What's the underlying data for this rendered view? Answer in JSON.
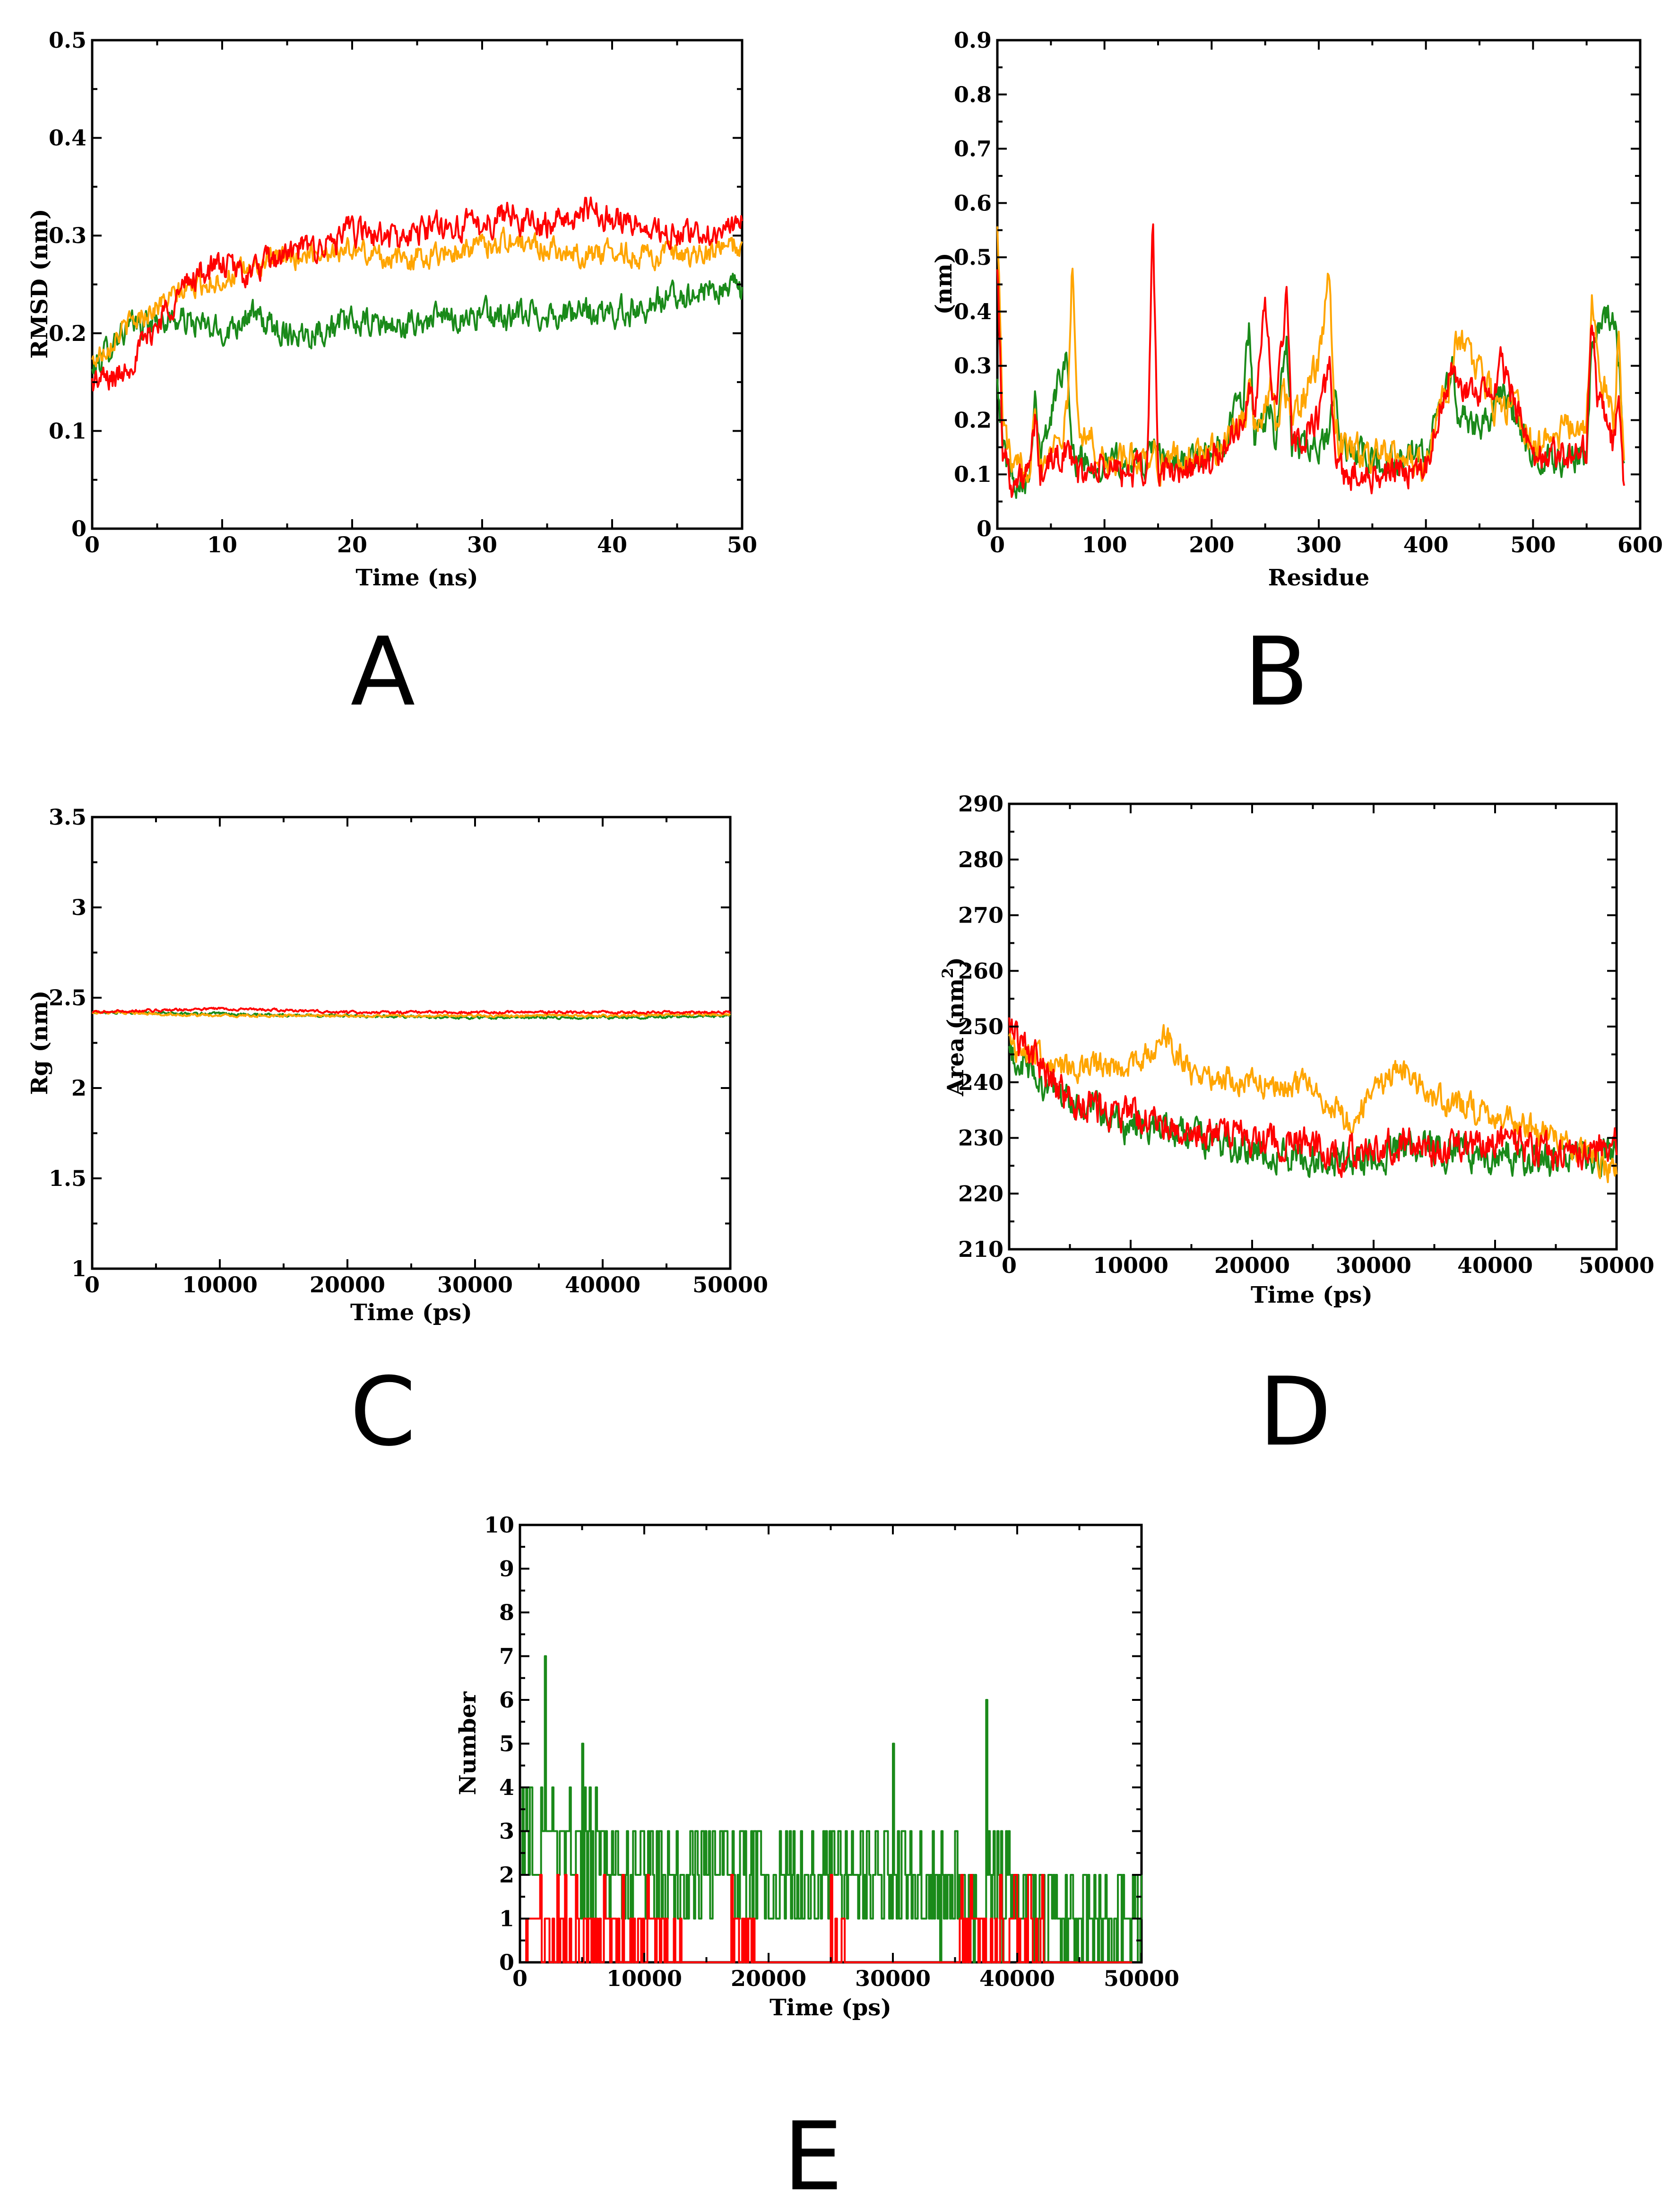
{
  "colors": {
    "green": "#1a8a1a",
    "orange": "#ffa500",
    "red": "#ff0000"
  },
  "chart_data": [
    {
      "id": "A",
      "type": "line",
      "panel_label": "A",
      "xlabel": "Time (ns)",
      "ylabel": "RMSD (nm)",
      "xlim": [
        0,
        50
      ],
      "ylim": [
        0,
        0.5
      ],
      "xticks": [
        0,
        10,
        20,
        30,
        40,
        50
      ],
      "xtick_labels": [
        "0",
        "10",
        "20",
        "30",
        "40",
        "50"
      ],
      "yticks": [
        0,
        0.1,
        0.2,
        0.3,
        0.4,
        0.5
      ],
      "ytick_labels": [
        "0",
        "0.1",
        "0.2",
        "0.3",
        "0.4",
        "0.5"
      ],
      "x": [
        0,
        2,
        4,
        6,
        8,
        10,
        12,
        14,
        16,
        18,
        20,
        22,
        24,
        26,
        28,
        30,
        32,
        34,
        36,
        38,
        40,
        42,
        44,
        46,
        48,
        50
      ],
      "series": [
        {
          "name": "green",
          "color": "#1a8a1a",
          "noise": 0.012,
          "values": [
            0.16,
            0.2,
            0.21,
            0.215,
            0.21,
            0.2,
            0.22,
            0.205,
            0.2,
            0.205,
            0.21,
            0.21,
            0.205,
            0.215,
            0.215,
            0.22,
            0.215,
            0.22,
            0.22,
            0.22,
            0.22,
            0.225,
            0.235,
            0.24,
            0.245,
            0.245
          ]
        },
        {
          "name": "orange",
          "color": "#ffa500",
          "noise": 0.01,
          "values": [
            0.17,
            0.2,
            0.22,
            0.235,
            0.25,
            0.255,
            0.265,
            0.275,
            0.28,
            0.285,
            0.285,
            0.28,
            0.275,
            0.28,
            0.285,
            0.29,
            0.295,
            0.29,
            0.285,
            0.28,
            0.285,
            0.28,
            0.28,
            0.275,
            0.285,
            0.29
          ]
        },
        {
          "name": "red",
          "color": "#ff0000",
          "noise": 0.012,
          "values": [
            0.15,
            0.155,
            0.19,
            0.23,
            0.26,
            0.27,
            0.26,
            0.275,
            0.285,
            0.29,
            0.305,
            0.3,
            0.295,
            0.31,
            0.31,
            0.31,
            0.325,
            0.31,
            0.315,
            0.325,
            0.32,
            0.31,
            0.3,
            0.3,
            0.305,
            0.31
          ]
        }
      ]
    },
    {
      "id": "B",
      "type": "line",
      "panel_label": "B",
      "xlabel": "Residue",
      "ylabel": "(nm)",
      "xlim": [
        0,
        600
      ],
      "ylim": [
        0,
        0.9
      ],
      "xticks": [
        0,
        100,
        200,
        300,
        400,
        500,
        600
      ],
      "xtick_labels": [
        "0",
        "100",
        "200",
        "300",
        "400",
        "500",
        "600"
      ],
      "yticks": [
        0,
        0.1,
        0.2,
        0.3,
        0.4,
        0.5,
        0.6,
        0.7,
        0.8,
        0.9
      ],
      "ytick_labels": [
        "0",
        "0.1",
        "0.2",
        "0.3",
        "0.4",
        "0.5",
        "0.6",
        "0.7",
        "0.8",
        "0.9"
      ],
      "x": [
        0,
        5,
        15,
        30,
        35,
        40,
        65,
        70,
        75,
        100,
        140,
        145,
        150,
        200,
        230,
        235,
        240,
        250,
        255,
        260,
        270,
        275,
        300,
        310,
        315,
        320,
        360,
        400,
        425,
        430,
        460,
        470,
        480,
        500,
        550,
        555,
        560,
        575,
        580,
        585
      ],
      "series": [
        {
          "name": "green",
          "color": "#1a8a1a",
          "noise": 0.025,
          "values": [
            0.3,
            0.15,
            0.09,
            0.1,
            0.27,
            0.12,
            0.34,
            0.12,
            0.13,
            0.12,
            0.12,
            0.17,
            0.12,
            0.13,
            0.25,
            0.38,
            0.15,
            0.2,
            0.24,
            0.16,
            0.35,
            0.15,
            0.14,
            0.18,
            0.25,
            0.15,
            0.12,
            0.13,
            0.3,
            0.2,
            0.2,
            0.25,
            0.22,
            0.12,
            0.14,
            0.35,
            0.38,
            0.4,
            0.3,
            0.1
          ]
        },
        {
          "name": "orange",
          "color": "#ffa500",
          "noise": 0.025,
          "values": [
            0.58,
            0.2,
            0.1,
            0.12,
            0.25,
            0.12,
            0.2,
            0.49,
            0.2,
            0.12,
            0.13,
            0.15,
            0.12,
            0.14,
            0.2,
            0.25,
            0.18,
            0.22,
            0.3,
            0.2,
            0.25,
            0.2,
            0.3,
            0.47,
            0.2,
            0.15,
            0.13,
            0.12,
            0.3,
            0.36,
            0.25,
            0.2,
            0.25,
            0.15,
            0.2,
            0.42,
            0.3,
            0.2,
            0.35,
            0.1
          ]
        },
        {
          "name": "red",
          "color": "#ff0000",
          "noise": 0.025,
          "values": [
            0.5,
            0.15,
            0.08,
            0.1,
            0.2,
            0.1,
            0.15,
            0.12,
            0.1,
            0.11,
            0.1,
            0.59,
            0.1,
            0.12,
            0.2,
            0.25,
            0.2,
            0.44,
            0.3,
            0.2,
            0.43,
            0.15,
            0.2,
            0.3,
            0.15,
            0.1,
            0.1,
            0.12,
            0.3,
            0.25,
            0.25,
            0.3,
            0.25,
            0.12,
            0.15,
            0.38,
            0.25,
            0.15,
            0.25,
            0.08
          ]
        }
      ]
    },
    {
      "id": "C",
      "type": "line",
      "panel_label": "C",
      "xlabel": "Time (ps)",
      "ylabel": "Rg (nm)",
      "xlim": [
        0,
        50000
      ],
      "ylim": [
        1,
        3.5
      ],
      "xticks": [
        0,
        10000,
        20000,
        30000,
        40000,
        50000
      ],
      "xtick_labels": [
        "0",
        "10000",
        "20000",
        "30000",
        "40000",
        "50000"
      ],
      "yticks": [
        1,
        1.5,
        2,
        2.5,
        3,
        3.5
      ],
      "ytick_labels": [
        "1",
        "1.5",
        "2",
        "2.5",
        "3",
        "3.5"
      ],
      "x": [
        0,
        10000,
        20000,
        30000,
        40000,
        50000
      ],
      "series": [
        {
          "name": "green",
          "color": "#1a8a1a",
          "noise": 0.006,
          "values": [
            2.42,
            2.41,
            2.4,
            2.39,
            2.39,
            2.4
          ]
        },
        {
          "name": "orange",
          "color": "#ffa500",
          "noise": 0.006,
          "values": [
            2.42,
            2.4,
            2.4,
            2.4,
            2.4,
            2.41
          ]
        },
        {
          "name": "red",
          "color": "#ff0000",
          "noise": 0.006,
          "values": [
            2.42,
            2.44,
            2.42,
            2.42,
            2.42,
            2.42
          ]
        }
      ]
    },
    {
      "id": "D",
      "type": "line",
      "panel_label": "D",
      "xlabel": "Time (ps)",
      "ylabel": "Area (nm",
      "ylabel_sup": "2",
      "ylabel_close": ")",
      "xlim": [
        0,
        50000
      ],
      "ylim": [
        210,
        290
      ],
      "xticks": [
        0,
        10000,
        20000,
        30000,
        40000,
        50000
      ],
      "xtick_labels": [
        "0",
        "10000",
        "20000",
        "30000",
        "40000",
        "50000"
      ],
      "yticks": [
        210,
        220,
        230,
        240,
        250,
        260,
        270,
        280,
        290
      ],
      "ytick_labels": [
        "210",
        "220",
        "230",
        "240",
        "250",
        "260",
        "270",
        "280",
        "290"
      ],
      "x": [
        0,
        5000,
        10000,
        13000,
        15000,
        20000,
        25000,
        28000,
        32000,
        35000,
        40000,
        45000,
        50000
      ],
      "series": [
        {
          "name": "green",
          "color": "#1a8a1a",
          "noise": 2.5,
          "values": [
            245,
            236,
            232,
            232,
            230,
            228,
            226,
            226,
            228,
            228,
            227,
            226,
            227
          ]
        },
        {
          "name": "orange",
          "color": "#ffa500",
          "noise": 2.0,
          "values": [
            247,
            242,
            243,
            248,
            242,
            240,
            239,
            233,
            243,
            237,
            234,
            230,
            224
          ]
        },
        {
          "name": "red",
          "color": "#ff0000",
          "noise": 2.5,
          "values": [
            250,
            236,
            234,
            232,
            232,
            230,
            229,
            227,
            229,
            228,
            230,
            227,
            229
          ]
        }
      ]
    },
    {
      "id": "E",
      "type": "line",
      "panel_label": "E",
      "xlabel": "Time (ps)",
      "ylabel": "Number",
      "xlim": [
        0,
        50000
      ],
      "ylim": [
        0,
        10
      ],
      "xticks": [
        0,
        10000,
        20000,
        30000,
        40000,
        50000
      ],
      "xtick_labels": [
        "0",
        "10000",
        "20000",
        "30000",
        "40000",
        "50000"
      ],
      "yticks": [
        0,
        1,
        2,
        3,
        4,
        5,
        6,
        7,
        8,
        9,
        10
      ],
      "ytick_labels": [
        "0",
        "1",
        "2",
        "3",
        "4",
        "5",
        "6",
        "7",
        "8",
        "9",
        "10"
      ],
      "series": [
        {
          "name": "green",
          "color": "#1a8a1a",
          "step": true,
          "samples": 500,
          "spikes": [
            [
              2000,
              7
            ],
            [
              5000,
              5
            ],
            [
              30000,
              5
            ],
            [
              37500,
              6
            ]
          ],
          "profile_x": [
            0,
            2000,
            5000,
            8000,
            15000,
            25000,
            30000,
            35000,
            38000,
            45000,
            50000
          ],
          "profile_y": [
            3,
            3,
            2.5,
            2,
            2,
            2,
            1.8,
            1.5,
            1.5,
            1,
            1
          ]
        },
        {
          "name": "red",
          "color": "#ff0000",
          "step": true,
          "samples": 400,
          "active_ranges": [
            [
              0,
              13000
            ],
            [
              17000,
              19000
            ],
            [
              25000,
              26000
            ],
            [
              35000,
              42000
            ]
          ],
          "profile_x": [
            0,
            50000
          ],
          "profile_y": [
            0.45,
            0.45
          ]
        }
      ]
    }
  ]
}
